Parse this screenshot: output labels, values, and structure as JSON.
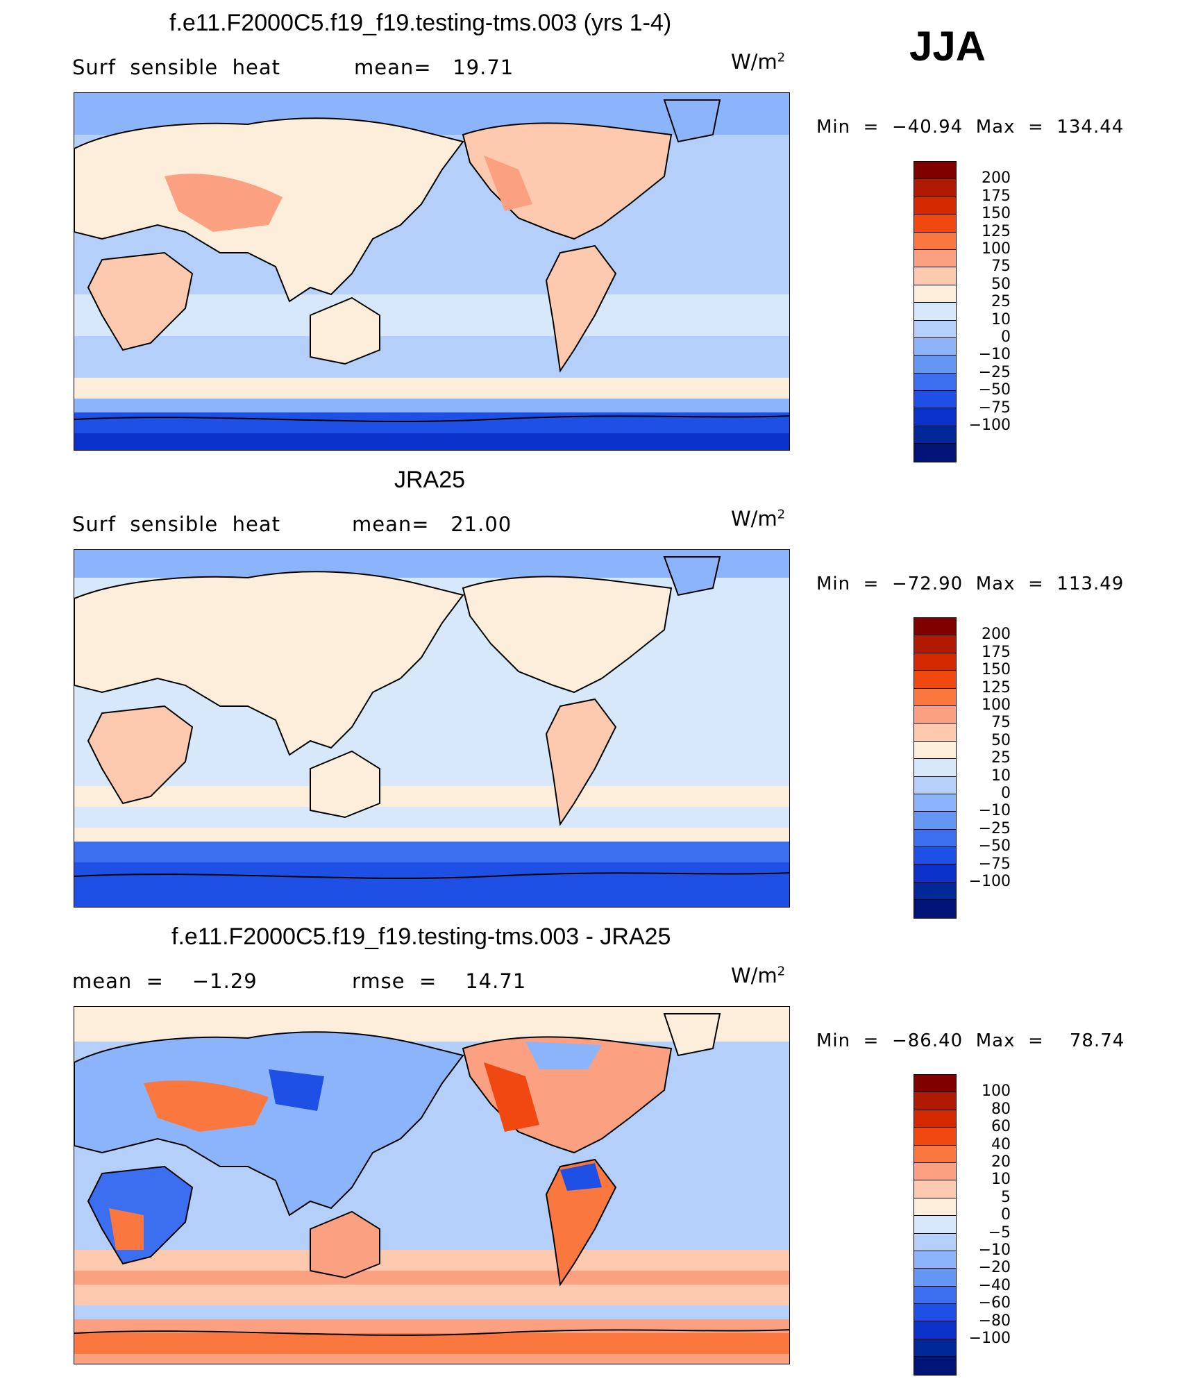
{
  "season": "JJA",
  "panels": [
    {
      "title": "f.e11.F2000C5.f19_f19.testing-tms.003 (yrs 1-4)",
      "left_label": "Surf  sensible  heat",
      "mid_label": "mean=   19.71",
      "units": "W/m",
      "units_sup": "2",
      "minmax": "Min  =  −40.94  Max  =  134.44",
      "colorbar": {
        "colors": [
          "#800000",
          "#b01a00",
          "#d42800",
          "#f04810",
          "#fa7840",
          "#fba080",
          "#fdcab0",
          "#fdeedc",
          "#d6e8fa",
          "#b4d0fa",
          "#8cb4fa",
          "#6496f4",
          "#3c6ef0",
          "#1e50e6",
          "#0a32c8",
          "#002896",
          "#001478"
        ],
        "ticks": [
          "200",
          "175",
          "150",
          "125",
          "100",
          "75",
          "50",
          "25",
          "10",
          "0",
          "−10",
          "−25",
          "−50",
          "−75",
          "−100"
        ]
      }
    },
    {
      "title": "JRA25",
      "left_label": "Surf  sensible  heat",
      "mid_label": "mean=   21.00",
      "units": "W/m",
      "units_sup": "2",
      "minmax": "Min  =  −72.90  Max  =  113.49",
      "colorbar": {
        "colors": [
          "#800000",
          "#b01a00",
          "#d42800",
          "#f04810",
          "#fa7840",
          "#fba080",
          "#fdcab0",
          "#fdeedc",
          "#d6e8fa",
          "#b4d0fa",
          "#8cb4fa",
          "#6496f4",
          "#3c6ef0",
          "#1e50e6",
          "#0a32c8",
          "#002896",
          "#001478"
        ],
        "ticks": [
          "200",
          "175",
          "150",
          "125",
          "100",
          "75",
          "50",
          "25",
          "10",
          "0",
          "−10",
          "−25",
          "−50",
          "−75",
          "−100"
        ]
      }
    },
    {
      "title": "f.e11.F2000C5.f19_f19.testing-tms.003 - JRA25",
      "left_label": "mean  =    −1.29",
      "mid_label": "rmse  =    14.71",
      "units": "W/m",
      "units_sup": "2",
      "minmax": "Min  =  −86.40  Max  =    78.74",
      "colorbar": {
        "colors": [
          "#800000",
          "#b01a00",
          "#d42800",
          "#f04810",
          "#fa7840",
          "#fba080",
          "#fdcab0",
          "#fdeedc",
          "#d6e8fa",
          "#b4d0fa",
          "#8cb4fa",
          "#6496f4",
          "#3c6ef0",
          "#1e50e6",
          "#0a32c8",
          "#002896",
          "#001478"
        ],
        "ticks": [
          "100",
          "80",
          "60",
          "40",
          "20",
          "10",
          "5",
          "0",
          "−5",
          "−10",
          "−20",
          "−40",
          "−60",
          "−80",
          "−100"
        ]
      }
    }
  ]
}
